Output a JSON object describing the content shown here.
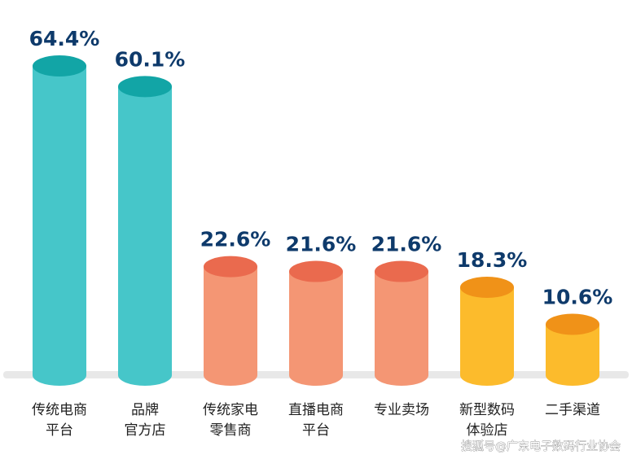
{
  "chart_data": {
    "type": "bar",
    "style": "3d-cylinder",
    "title": "",
    "xlabel": "",
    "ylabel": "",
    "unit": "%",
    "ylim": [
      0,
      70
    ],
    "grid": false,
    "legend": "none",
    "categories": [
      [
        "传统电商",
        "平台"
      ],
      [
        "品牌",
        "官方店"
      ],
      [
        "传统家电",
        "零售商"
      ],
      [
        "直播电商",
        "平台"
      ],
      [
        "专业卖场"
      ],
      [
        "新型数码",
        "体验店"
      ],
      [
        "二手渠道"
      ]
    ],
    "values": [
      64.4,
      60.1,
      22.6,
      21.6,
      21.6,
      18.3,
      10.6
    ],
    "value_labels": [
      "64.4%",
      "60.1%",
      "22.6%",
      "21.6%",
      "21.6%",
      "18.3%",
      "10.6%"
    ],
    "bar_colors": [
      {
        "body": "#46c6c9",
        "top": "#12a5a6"
      },
      {
        "body": "#46c6c9",
        "top": "#12a5a6"
      },
      {
        "body": "#f49674",
        "top": "#ea6a4e"
      },
      {
        "body": "#f49674",
        "top": "#ea6a4e"
      },
      {
        "body": "#f49674",
        "top": "#ea6a4e"
      },
      {
        "body": "#fcbb2c",
        "top": "#f09218"
      },
      {
        "body": "#fcbb2c",
        "top": "#f09218"
      }
    ],
    "value_label_color": "#0e3a6b",
    "baseline_color": "#e8e8e8"
  },
  "watermark": "搜狐号@广东电子数码行业协会"
}
